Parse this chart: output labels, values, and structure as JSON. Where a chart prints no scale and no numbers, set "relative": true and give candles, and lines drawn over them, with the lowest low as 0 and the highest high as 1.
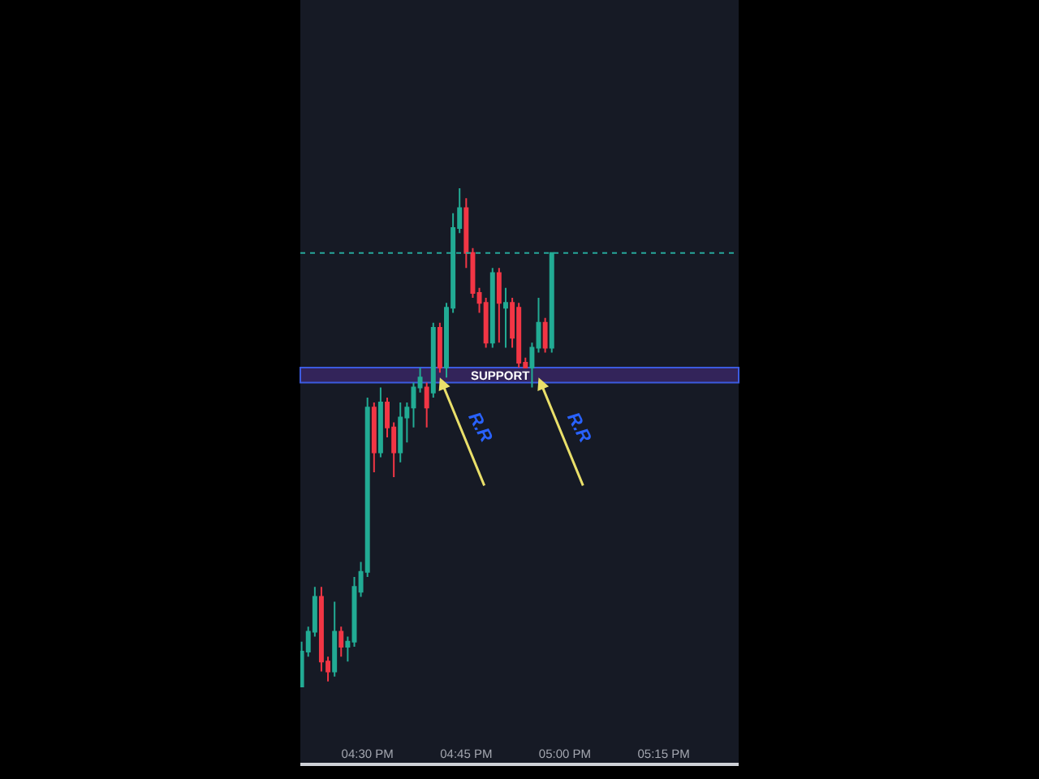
{
  "chart_data": {
    "type": "candlestick",
    "relative": true,
    "x": [
      16.3333,
      16.35,
      16.3667,
      16.3833,
      16.4,
      16.4167,
      16.4333,
      16.45,
      16.4667,
      16.4833,
      16.5,
      16.5167,
      16.5333,
      16.55,
      16.5667,
      16.5833,
      16.6,
      16.6167,
      16.6333,
      16.65,
      16.6667,
      16.6833,
      16.7,
      16.7167,
      16.7333,
      16.75,
      16.7667,
      16.7833,
      16.8,
      16.8167,
      16.8333,
      16.85,
      16.8667,
      16.8833,
      16.9,
      16.9167,
      16.9333,
      16.95,
      16.9667
    ],
    "ohlc": [
      [
        0,
        0.09,
        0,
        0.07
      ],
      [
        0.07,
        0.12,
        0.06,
        0.11
      ],
      [
        0.11,
        0.2,
        0.1,
        0.18
      ],
      [
        0.18,
        0.2,
        0.03,
        0.05
      ],
      [
        0.05,
        0.06,
        0.01,
        0.03
      ],
      [
        0.03,
        0.17,
        0.02,
        0.11
      ],
      [
        0.11,
        0.12,
        0.06,
        0.08
      ],
      [
        0.08,
        0.1,
        0.05,
        0.09
      ],
      [
        0.09,
        0.22,
        0.08,
        0.2
      ],
      [
        0.19,
        0.25,
        0.18,
        0.23
      ],
      [
        0.23,
        0.58,
        0.22,
        0.56
      ],
      [
        0.56,
        0.57,
        0.43,
        0.47
      ],
      [
        0.47,
        0.6,
        0.46,
        0.57
      ],
      [
        0.57,
        0.58,
        0.5,
        0.52
      ],
      [
        0.52,
        0.53,
        0.42,
        0.47
      ],
      [
        0.47,
        0.57,
        0.45,
        0.54
      ],
      [
        0.54,
        0.57,
        0.49,
        0.56
      ],
      [
        0.56,
        0.61,
        0.52,
        0.6
      ],
      [
        0.6,
        0.64,
        0.59,
        0.62
      ],
      [
        0.6,
        0.61,
        0.52,
        0.56
      ],
      [
        0.59,
        0.73,
        0.58,
        0.72
      ],
      [
        0.72,
        0.73,
        0.63,
        0.64
      ],
      [
        0.64,
        0.77,
        0.62,
        0.76
      ],
      [
        0.76,
        0.95,
        0.75,
        0.92
      ],
      [
        0.92,
        1,
        0.91,
        0.96
      ],
      [
        0.96,
        0.98,
        0.84,
        0.87
      ],
      [
        0.87,
        0.88,
        0.78,
        0.79
      ],
      [
        0.79,
        0.8,
        0.75,
        0.77
      ],
      [
        0.77,
        0.78,
        0.68,
        0.69
      ],
      [
        0.69,
        0.84,
        0.68,
        0.83
      ],
      [
        0.83,
        0.84,
        0.69,
        0.77
      ],
      [
        0.76,
        0.8,
        0.68,
        0.77
      ],
      [
        0.77,
        0.78,
        0.68,
        0.7
      ],
      [
        0.76,
        0.77,
        0.64,
        0.65
      ],
      [
        0.65,
        0.66,
        0.64,
        0.64
      ],
      [
        0.64,
        0.69,
        0.6,
        0.68
      ],
      [
        0.68,
        0.78,
        0.67,
        0.73
      ],
      [
        0.73,
        0.74,
        0.67,
        0.68
      ],
      [
        0.68,
        0.87,
        0.67,
        0.87
      ]
    ],
    "colors": [
      "#22ab94",
      "#22ab94",
      "#22ab94",
      "#f23645",
      "#f23645",
      "#22ab94",
      "#f23645",
      "#22ab94",
      "#22ab94",
      "#22ab94",
      "#22ab94",
      "#f23645",
      "#22ab94",
      "#f23645",
      "#f23645",
      "#22ab94",
      "#22ab94",
      "#22ab94",
      "#22ab94",
      "#f23645",
      "#22ab94",
      "#f23645",
      "#22ab94",
      "#22ab94",
      "#22ab94",
      "#f23645",
      "#f23645",
      "#f23645",
      "#f23645",
      "#22ab94",
      "#f23645",
      "#22ab94",
      "#f23645",
      "#f23645",
      "#f23645",
      "#22ab94",
      "#22ab94",
      "#f23645",
      "#22ab94"
    ],
    "xlim": [
      16.33,
      17.44
    ],
    "xticks": [
      {
        "value": 16.5,
        "label": "04:30 PM"
      },
      {
        "value": 16.75,
        "label": "04:45 PM"
      },
      {
        "value": 17,
        "label": "05:00 PM"
      },
      {
        "value": 17.25,
        "label": "05:15 PM"
      }
    ],
    "tick_labels": "x",
    "ref_lines": [
      {
        "axis": "y",
        "value": 0.87,
        "color": "#26a69a",
        "line_style": "dotted"
      }
    ],
    "bands": [
      {
        "axis": "y",
        "from": 0.61,
        "to": 0.64,
        "label": "SUPPORT",
        "color": "#33245a"
      }
    ],
    "annotations": [
      {
        "text": "R.R",
        "x": 16.6833,
        "y": 0.62
      },
      {
        "text": "R.R",
        "x": 16.9333,
        "y": 0.62
      }
    ]
  }
}
